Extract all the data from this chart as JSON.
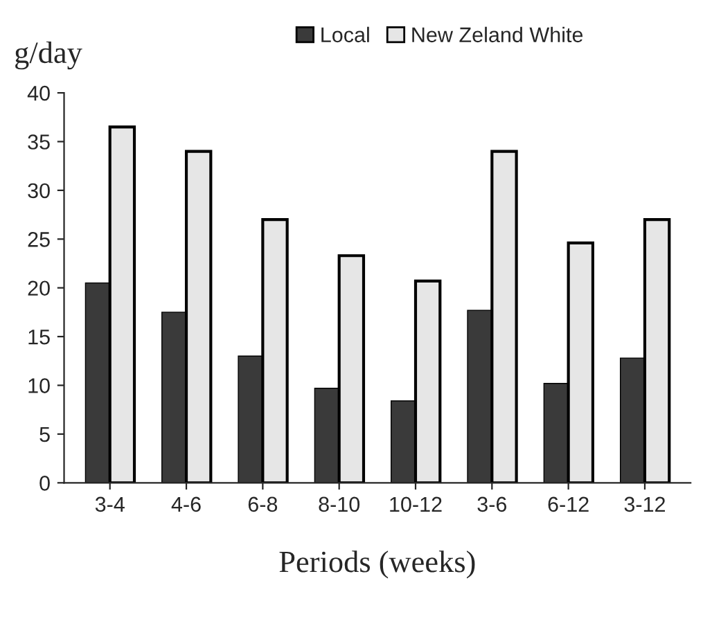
{
  "chart_data": {
    "type": "bar",
    "ylabel": "g/day",
    "xlabel": "Periods (weeks)",
    "categories": [
      "3-4",
      "4-6",
      "6-8",
      "8-10",
      "10-12",
      "3-6",
      "6-12",
      "3-12"
    ],
    "series": [
      {
        "name": "Local",
        "color": "#3a3a3a",
        "values": [
          20.5,
          17.5,
          13,
          9.7,
          8.4,
          17.7,
          10.2,
          12.8
        ]
      },
      {
        "name": "New Zeland White",
        "color": "#e6e6e6",
        "values": [
          36.5,
          34,
          27,
          23.3,
          20.7,
          34,
          24.6,
          27
        ]
      }
    ],
    "ylim": [
      0,
      40
    ],
    "yticks": [
      0,
      5,
      10,
      15,
      20,
      25,
      30,
      35,
      40
    ],
    "grid": false,
    "legend": "top"
  }
}
